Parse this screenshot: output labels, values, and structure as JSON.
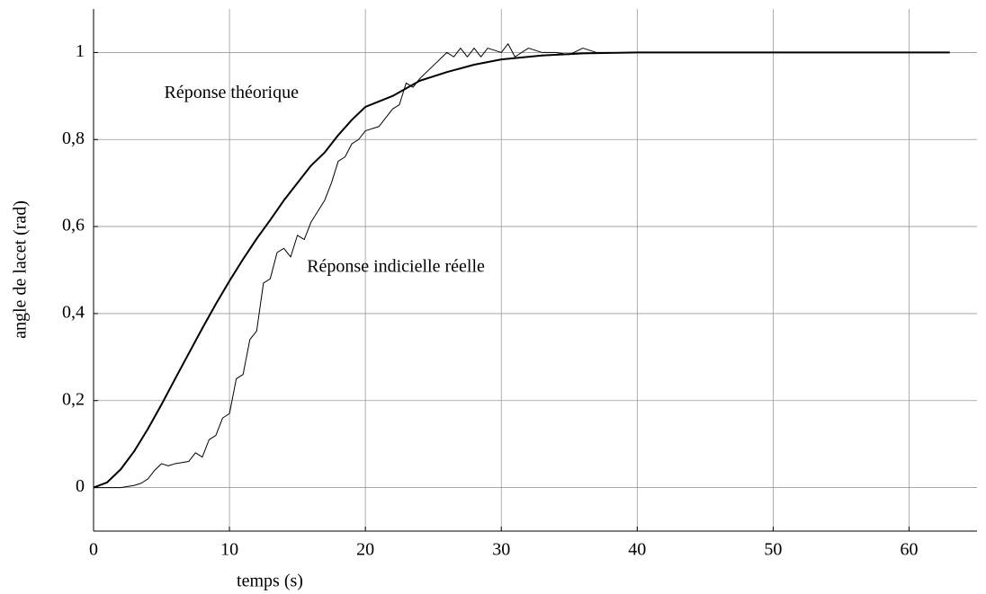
{
  "chart_data": {
    "type": "line",
    "xlabel": "temps (s)",
    "ylabel": "angle de lacet (rad)",
    "xlim": [
      0,
      65
    ],
    "ylim": [
      -0.1,
      1.1
    ],
    "xticks": [
      0,
      10,
      20,
      30,
      40,
      50,
      60
    ],
    "yticks": [
      0,
      {
        "value": 0.2,
        "label": "0,2"
      },
      {
        "value": 0.4,
        "label": "0,4"
      },
      {
        "value": 0.6,
        "label": "0,6"
      },
      {
        "value": 0.8,
        "label": "0,8"
      },
      1
    ],
    "grid": true,
    "annotations": [
      {
        "text": "Réponse théorique",
        "x": 5.2,
        "y": 0.905
      },
      {
        "text": "Réponse indicielle réelle",
        "x": 15.7,
        "y": 0.505
      }
    ],
    "series": [
      {
        "color": "#000000",
        "width": 2,
        "x": [
          0,
          1,
          2,
          3,
          4,
          5,
          6,
          7,
          8,
          9,
          10,
          11,
          12,
          13,
          14,
          15,
          16,
          17,
          18,
          19,
          20,
          22,
          24,
          26,
          28,
          30,
          33,
          36,
          40,
          63
        ],
        "values": [
          0,
          0.012,
          0.042,
          0.084,
          0.135,
          0.191,
          0.25,
          0.308,
          0.366,
          0.422,
          0.475,
          0.525,
          0.572,
          0.615,
          0.66,
          0.7,
          0.74,
          0.77,
          0.81,
          0.845,
          0.875,
          0.9,
          0.935,
          0.955,
          0.972,
          0.984,
          0.993,
          0.998,
          1,
          1
        ]
      },
      {
        "color": "#000000",
        "width": 1,
        "x": [
          0,
          2,
          3,
          3.5,
          4,
          4.5,
          5,
          5.5,
          6,
          7,
          7.5,
          8,
          8.5,
          9,
          9.5,
          10,
          10.5,
          11,
          11.5,
          12,
          12.5,
          13,
          13.5,
          14,
          14.5,
          15,
          15.5,
          16,
          17,
          17.5,
          18,
          18.5,
          19,
          19.5,
          20,
          21,
          22,
          22.5,
          23,
          23.5,
          24,
          25,
          26,
          26.5,
          27,
          27.5,
          28,
          28.5,
          29,
          30,
          30.5,
          31,
          32,
          33,
          34,
          35,
          36,
          37,
          38
        ],
        "values": [
          0,
          0,
          0.005,
          0.01,
          0.02,
          0.04,
          0.055,
          0.05,
          0.055,
          0.06,
          0.08,
          0.07,
          0.11,
          0.12,
          0.16,
          0.17,
          0.25,
          0.26,
          0.34,
          0.36,
          0.47,
          0.48,
          0.54,
          0.55,
          0.53,
          0.58,
          0.57,
          0.61,
          0.66,
          0.7,
          0.75,
          0.76,
          0.79,
          0.8,
          0.82,
          0.83,
          0.87,
          0.88,
          0.93,
          0.92,
          0.94,
          0.97,
          1.0,
          0.99,
          1.01,
          0.99,
          1.01,
          0.99,
          1.01,
          1.0,
          1.02,
          0.99,
          1.01,
          1.0,
          1.0,
          0.995,
          1.01,
          1.0,
          1.0
        ]
      }
    ]
  }
}
